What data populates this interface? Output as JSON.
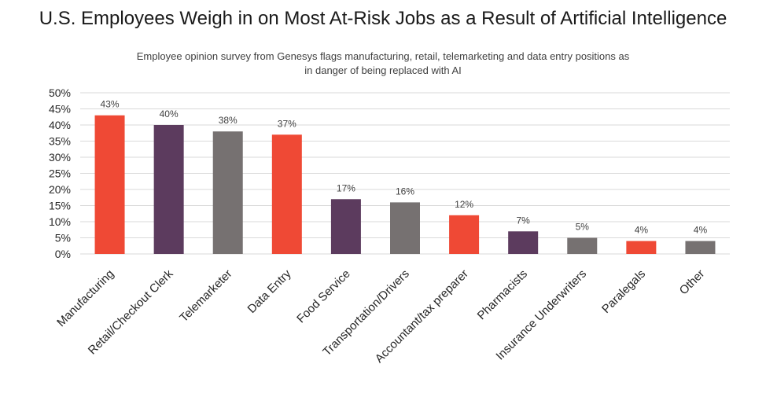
{
  "chart_data": {
    "type": "bar",
    "title": "U.S. Employees Weigh in on Most At-Risk Jobs as a Result of Artificial Intelligence",
    "subtitle": [
      "Employee opinion survey from Genesys flags manufacturing, retail, telemarketing and data entry positions as",
      "in danger of being replaced with AI"
    ],
    "categories": [
      "Manufacturing",
      "Retail/Checkout Clerk",
      "Telemarketer",
      "Data Entry",
      "Food Service",
      "Transportation/Drivers",
      "Accountant/tax preparer",
      "Pharmacists",
      "Insurance Underwriters",
      "Paralegals",
      "Other"
    ],
    "values": [
      43,
      40,
      38,
      37,
      17,
      16,
      12,
      7,
      5,
      4,
      4
    ],
    "data_labels": [
      "43%",
      "40%",
      "38%",
      "37%",
      "17%",
      "16%",
      "12%",
      "7%",
      "5%",
      "4%",
      "4%"
    ],
    "bar_colors": [
      "#ef4935",
      "#5c3b5e",
      "#767171",
      "#ef4935",
      "#5c3b5e",
      "#767171",
      "#ef4935",
      "#5c3b5e",
      "#767171",
      "#ef4935",
      "#767171"
    ],
    "y_ticks": [
      "0%",
      "5%",
      "10%",
      "15%",
      "20%",
      "25%",
      "30%",
      "35%",
      "40%",
      "45%",
      "50%"
    ],
    "ylim": [
      0,
      50
    ],
    "xlabel": "",
    "ylabel": "",
    "grid": true,
    "legend": "none"
  },
  "colors": {
    "gridline": "#d9d9d9",
    "axis": "#d9d9d9",
    "text": "#262626"
  }
}
